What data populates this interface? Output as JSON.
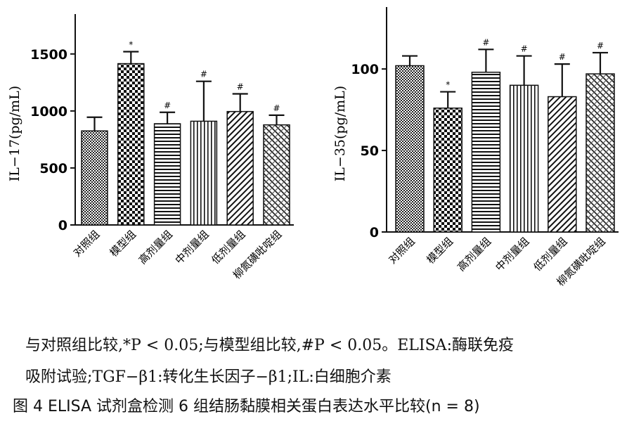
{
  "figure": {
    "note_line1": "与对照组比较,*P < 0.05;与模型组比较,#P < 0.05。ELISA:酶联免疫",
    "note_line2": "吸附试验;TGF−β1:转化生长因子−β1;IL:白细胞介素",
    "caption": "图 4   ELISA 试剂盒检测 6 组结肠黏膜相关蛋白表达水平比较(n = 8)"
  },
  "chart_data": [
    {
      "type": "bar",
      "ylabel": "IL−17(pg/mL)",
      "ylim": [
        0,
        1850
      ],
      "yticks": [
        0,
        500,
        1000,
        1500
      ],
      "categories": [
        "对照组",
        "模型组",
        "高剂量组",
        "中剂量组",
        "低剂量组",
        "柳氮磺吡啶组"
      ],
      "values": [
        825,
        1415,
        888,
        910,
        995,
        878
      ],
      "errors": [
        120,
        105,
        100,
        350,
        155,
        85
      ],
      "significance": [
        "",
        "*",
        "#",
        "#",
        "#",
        "#"
      ],
      "patterns": [
        "dots",
        "checker",
        "hlines",
        "vlines",
        "diag",
        "crosshatch"
      ]
    },
    {
      "type": "bar",
      "ylabel": "IL−35(pg/mL)",
      "ylim": [
        0,
        138
      ],
      "yticks": [
        0,
        50,
        100
      ],
      "categories": [
        "对照组",
        "模型组",
        "高剂量组",
        "中剂量组",
        "低剂量组",
        "柳氮磺吡啶组"
      ],
      "values": [
        102,
        76,
        98,
        90,
        83,
        97
      ],
      "errors": [
        6,
        10,
        14,
        18,
        20,
        13
      ],
      "significance": [
        "",
        "*",
        "#",
        "#",
        "#",
        "#"
      ],
      "patterns": [
        "dots",
        "checker",
        "hlines",
        "vlines",
        "diag",
        "crosshatch"
      ]
    }
  ]
}
